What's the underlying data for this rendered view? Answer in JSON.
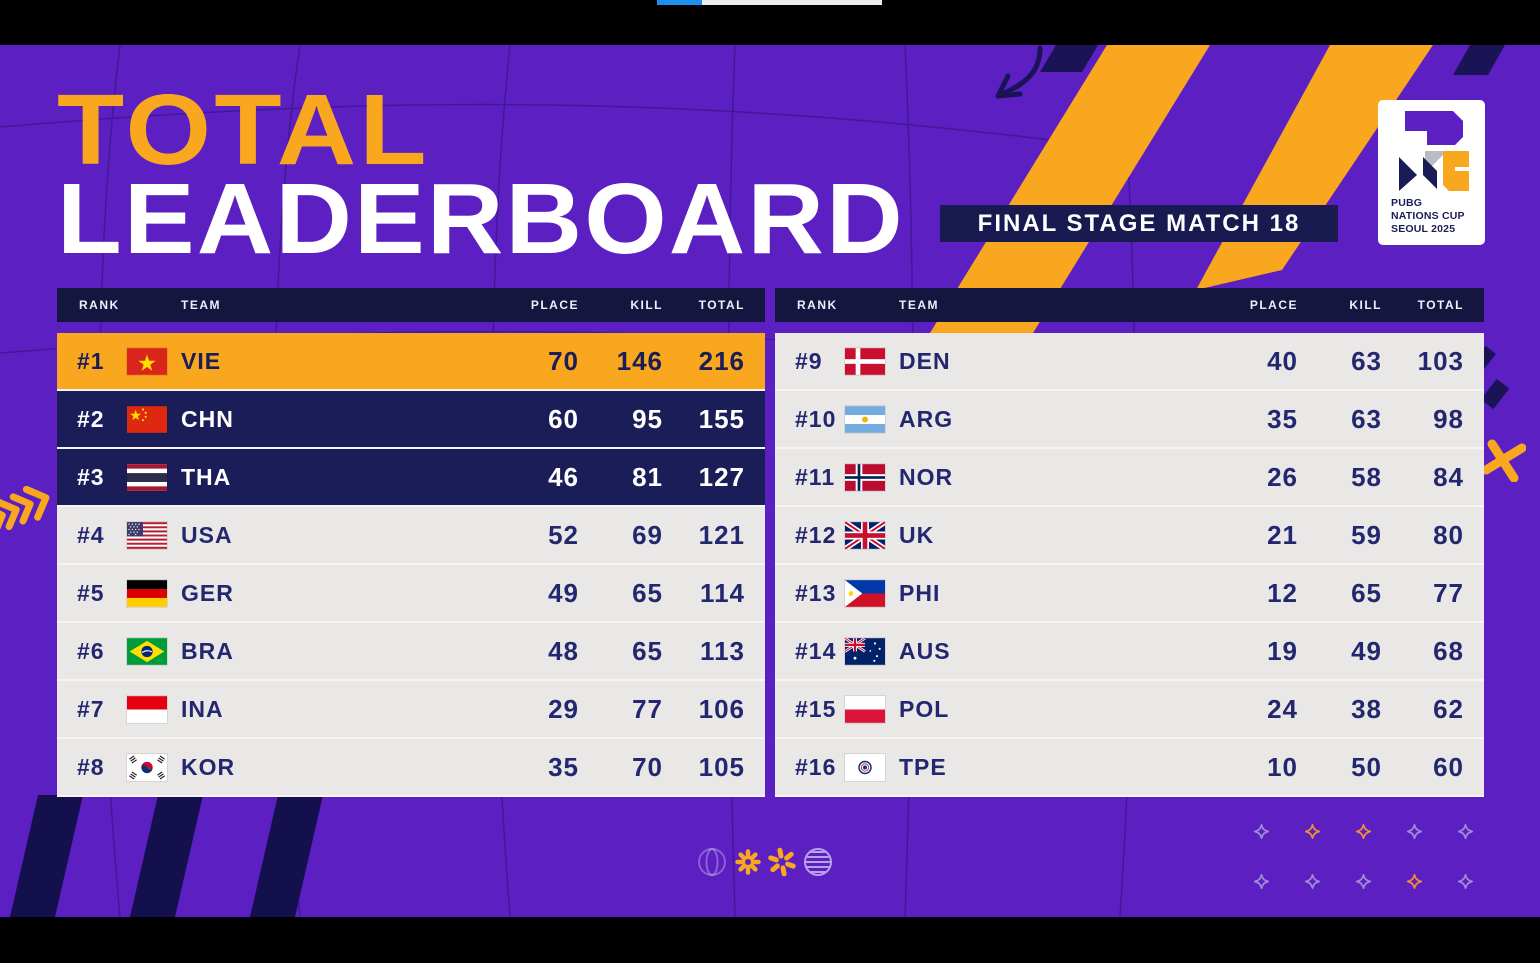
{
  "colors": {
    "background": "#5b1fc2",
    "accent_orange": "#f8a71f",
    "navy_row": "#1b1d58",
    "header_navy": "#14163f",
    "light_row": "#e9e8e6",
    "navy_text": "#23276f",
    "gold_row": "#f8a71f",
    "progress_blue": "#1d8fef",
    "sparkle_lavender": "#a18bd8",
    "sparkle_orange": "#ef8f35"
  },
  "header": {
    "title_line1": "TOTAL",
    "title_line2": "LEADERBOARD",
    "stage_badge": "FINAL STAGE MATCH 18"
  },
  "logo": {
    "line1": "PUBG",
    "line2": "NATIONS CUP",
    "line3": "SEOUL 2025"
  },
  "leaderboard": {
    "columns": [
      "RANK",
      "TEAM",
      "PLACE",
      "KILL",
      "TOTAL"
    ],
    "left_rows": [
      {
        "rank": "#1",
        "flag": "vie",
        "team": "VIE",
        "place": 70,
        "kill": 146,
        "total": 216,
        "variant": "gold"
      },
      {
        "rank": "#2",
        "flag": "chn",
        "team": "CHN",
        "place": 60,
        "kill": 95,
        "total": 155,
        "variant": "navy"
      },
      {
        "rank": "#3",
        "flag": "tha",
        "team": "THA",
        "place": 46,
        "kill": 81,
        "total": 127,
        "variant": "navy"
      },
      {
        "rank": "#4",
        "flag": "usa",
        "team": "USA",
        "place": 52,
        "kill": 69,
        "total": 121,
        "variant": "light"
      },
      {
        "rank": "#5",
        "flag": "ger",
        "team": "GER",
        "place": 49,
        "kill": 65,
        "total": 114,
        "variant": "light"
      },
      {
        "rank": "#6",
        "flag": "bra",
        "team": "BRA",
        "place": 48,
        "kill": 65,
        "total": 113,
        "variant": "light"
      },
      {
        "rank": "#7",
        "flag": "ina",
        "team": "INA",
        "place": 29,
        "kill": 77,
        "total": 106,
        "variant": "light"
      },
      {
        "rank": "#8",
        "flag": "kor",
        "team": "KOR",
        "place": 35,
        "kill": 70,
        "total": 105,
        "variant": "light"
      }
    ],
    "right_rows": [
      {
        "rank": "#9",
        "flag": "den",
        "team": "DEN",
        "place": 40,
        "kill": 63,
        "total": 103,
        "variant": "light"
      },
      {
        "rank": "#10",
        "flag": "arg",
        "team": "ARG",
        "place": 35,
        "kill": 63,
        "total": 98,
        "variant": "light"
      },
      {
        "rank": "#11",
        "flag": "nor",
        "team": "NOR",
        "place": 26,
        "kill": 58,
        "total": 84,
        "variant": "light"
      },
      {
        "rank": "#12",
        "flag": "uk",
        "team": "UK",
        "place": 21,
        "kill": 59,
        "total": 80,
        "variant": "light"
      },
      {
        "rank": "#13",
        "flag": "phi",
        "team": "PHI",
        "place": 12,
        "kill": 65,
        "total": 77,
        "variant": "light"
      },
      {
        "rank": "#14",
        "flag": "aus",
        "team": "AUS",
        "place": 19,
        "kill": 49,
        "total": 68,
        "variant": "light"
      },
      {
        "rank": "#15",
        "flag": "pol",
        "team": "POL",
        "place": 24,
        "kill": 38,
        "total": 62,
        "variant": "light"
      },
      {
        "rank": "#16",
        "flag": "tpe",
        "team": "TPE",
        "place": 10,
        "kill": 50,
        "total": 60,
        "variant": "light"
      }
    ]
  },
  "decor": {
    "sparkles": [
      [
        "lav",
        "org",
        "org",
        "lav",
        "lav"
      ],
      [
        "lav",
        "lav",
        "lav",
        "org",
        "lav"
      ]
    ]
  }
}
